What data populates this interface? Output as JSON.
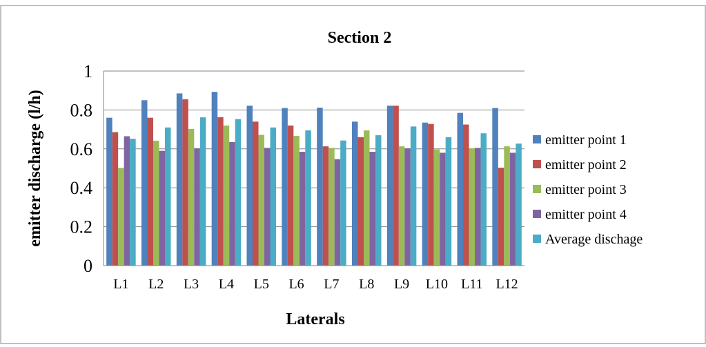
{
  "chart_data": {
    "type": "bar",
    "title": "Section 2",
    "xlabel": "Laterals",
    "ylabel": "emitter discharge (l/h)",
    "categories": [
      "L1",
      "L2",
      "L3",
      "L4",
      "L5",
      "L6",
      "L7",
      "L8",
      "L9",
      "L10",
      "L11",
      "L12"
    ],
    "ylim": [
      0,
      1
    ],
    "yticks": [
      "0",
      "0.2",
      "0.4",
      "0.6",
      "0.8",
      "1"
    ],
    "grid": true,
    "legend_position": "right",
    "series": [
      {
        "name": "emitter point 1",
        "color": "#4F81BD",
        "values": [
          0.76,
          0.85,
          0.885,
          0.893,
          0.822,
          0.81,
          0.812,
          0.74,
          0.822,
          0.735,
          0.785,
          0.81
        ]
      },
      {
        "name": "emitter point 2",
        "color": "#C0504D",
        "values": [
          0.686,
          0.76,
          0.855,
          0.763,
          0.74,
          0.72,
          0.613,
          0.66,
          0.822,
          0.728,
          0.725,
          0.503
        ]
      },
      {
        "name": "emitter point 3",
        "color": "#9BBB59",
        "values": [
          0.502,
          0.642,
          0.702,
          0.72,
          0.672,
          0.667,
          0.605,
          0.695,
          0.613,
          0.597,
          0.603,
          0.613
        ]
      },
      {
        "name": "emitter point 4",
        "color": "#8064A2",
        "values": [
          0.665,
          0.59,
          0.603,
          0.635,
          0.605,
          0.585,
          0.547,
          0.585,
          0.603,
          0.58,
          0.605,
          0.58
        ]
      },
      {
        "name": "Average dischage",
        "color": "#4BACC6",
        "values": [
          0.652,
          0.71,
          0.762,
          0.753,
          0.71,
          0.695,
          0.643,
          0.67,
          0.715,
          0.66,
          0.68,
          0.627
        ]
      }
    ]
  }
}
